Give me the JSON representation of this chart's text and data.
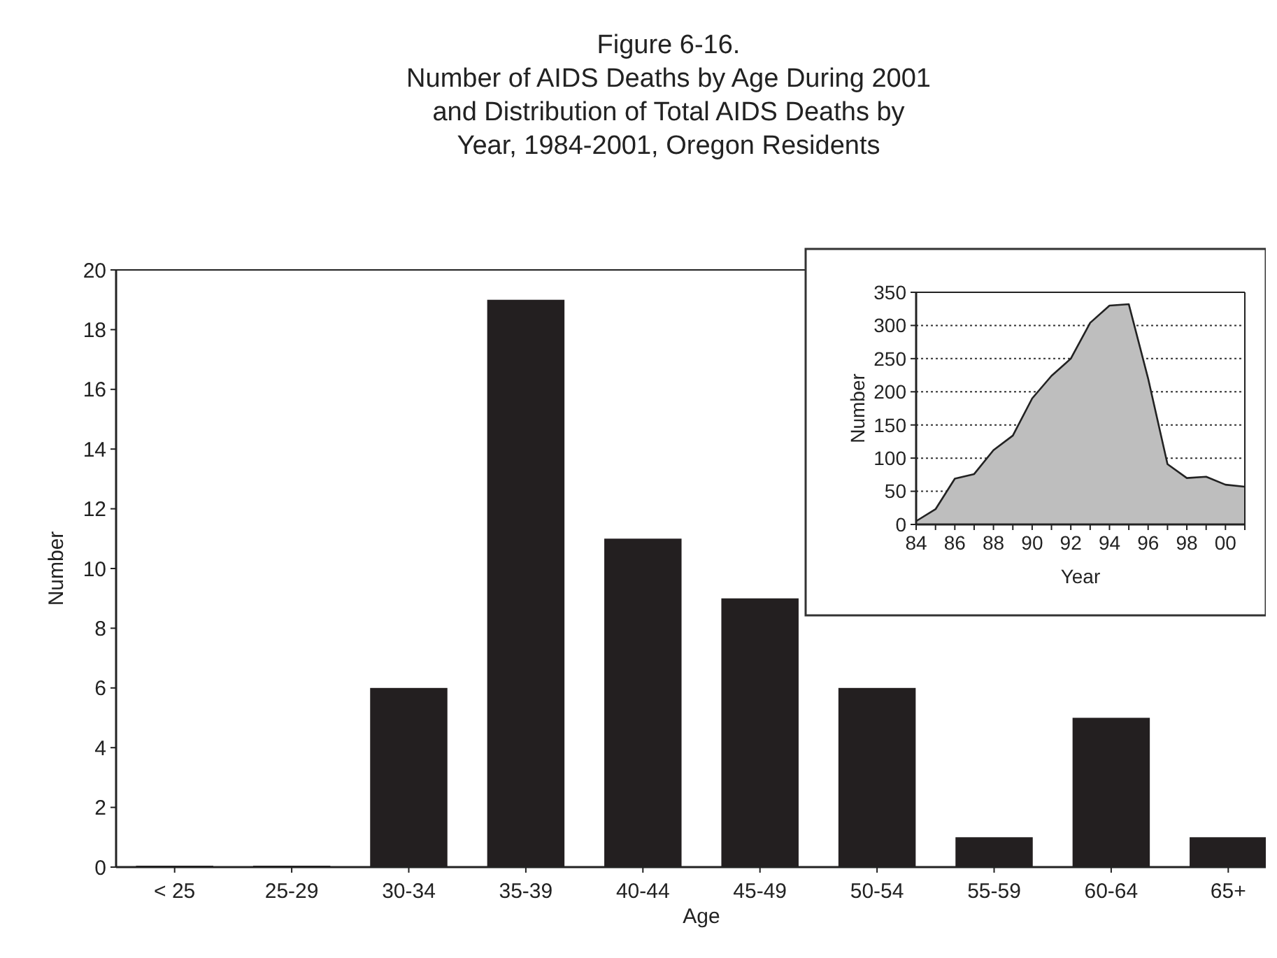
{
  "chart_data": [
    {
      "type": "bar",
      "title": "Figure 6-16.\nNumber of AIDS Deaths by Age During 2001\nand Distribution of Total AIDS Deaths by\nYear, 1984-2001, Oregon Residents",
      "xlabel": "Age",
      "ylabel": "Number",
      "categories": [
        "< 25",
        "25-29",
        "30-34",
        "35-39",
        "40-44",
        "45-49",
        "50-54",
        "55-59",
        "60-64",
        "65+"
      ],
      "values": [
        0,
        0,
        6,
        19,
        11,
        9,
        6,
        1,
        5,
        1
      ],
      "color": "#231f20",
      "ylim": [
        0,
        20
      ],
      "yticks": [
        0,
        2,
        4,
        6,
        8,
        10,
        12,
        14,
        16,
        18,
        20
      ],
      "grid": false
    },
    {
      "type": "area",
      "xlabel": "Year",
      "ylabel": "Number",
      "x": [
        "1984",
        "1985",
        "1986",
        "1987",
        "1988",
        "1989",
        "1990",
        "1991",
        "1992",
        "1993",
        "1994",
        "1995",
        "1996",
        "1997",
        "1998",
        "1999",
        "2000",
        "2001"
      ],
      "values": [
        5,
        23,
        69,
        76,
        112,
        134,
        190,
        224,
        250,
        304,
        330,
        332,
        220,
        91,
        70,
        72,
        60,
        57
      ],
      "color": "#bebebe",
      "xlim": [
        "1984",
        "2001"
      ],
      "xticks": [
        {
          "value": "1984",
          "label": "84"
        },
        {
          "value": "1986",
          "label": "86"
        },
        {
          "value": "1988",
          "label": "88"
        },
        {
          "value": "1990",
          "label": "90"
        },
        {
          "value": "1992",
          "label": "92"
        },
        {
          "value": "1994",
          "label": "94"
        },
        {
          "value": "1996",
          "label": "96"
        },
        {
          "value": "1998",
          "label": "98"
        },
        {
          "value": "2000",
          "label": "00"
        }
      ],
      "ylim": [
        0,
        350
      ],
      "yticks": [
        0,
        50,
        100,
        150,
        200,
        250,
        300,
        350
      ],
      "grid": "y"
    }
  ]
}
